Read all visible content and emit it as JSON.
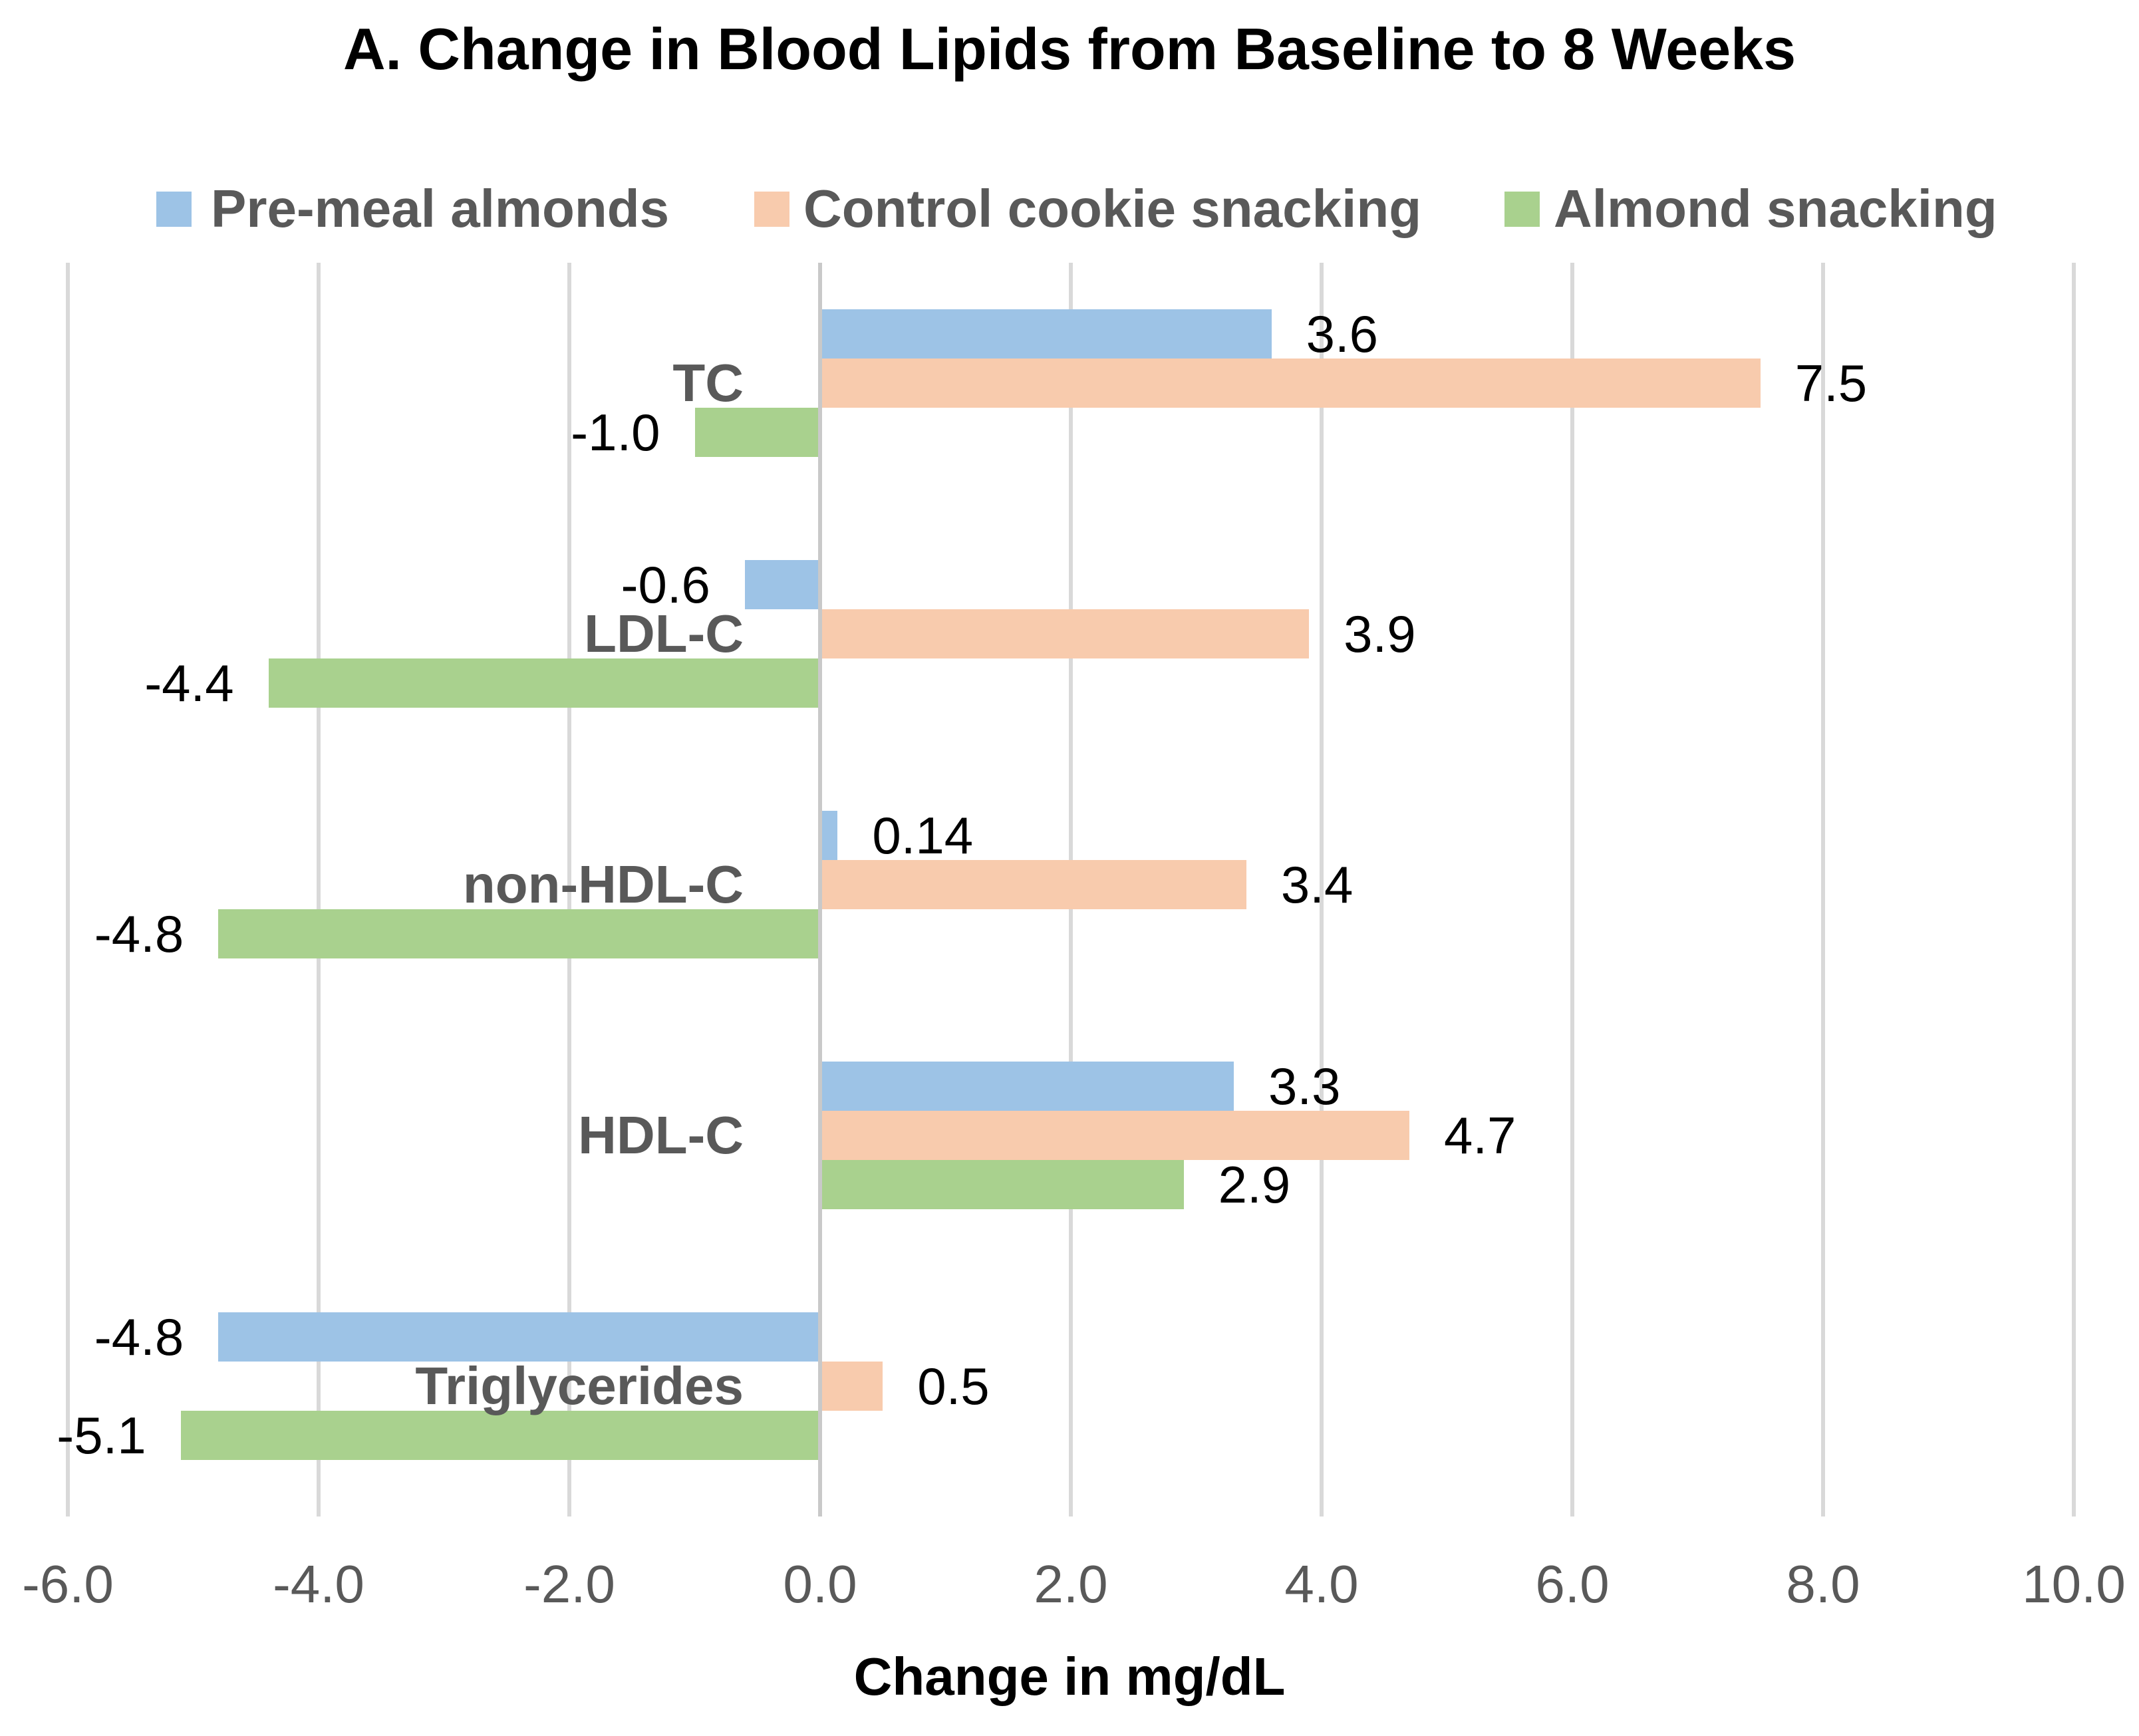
{
  "title": "A. Change in Blood Lipids from Baseline to 8 Weeks",
  "x_axis": {
    "label": "Change in mg/dL",
    "ticks": [
      "-6.0",
      "-4.0",
      "-2.0",
      "0.0",
      "2.0",
      "4.0",
      "6.0",
      "8.0",
      "10.0"
    ],
    "tick_values": [
      -6,
      -4,
      -2,
      0,
      2,
      4,
      6,
      8,
      10
    ],
    "min": -6,
    "max": 10,
    "step": 2
  },
  "style": {
    "gridline_color": "#D9D9D9",
    "zero_axis_color": "#C9C9C9",
    "tick_text_color": "#595959",
    "category_text_color": "#595959",
    "legend_text_color": "#595959",
    "value_text_color": "#000000",
    "title_color": "#000000"
  },
  "chart_data": {
    "type": "bar",
    "orientation": "horizontal",
    "title": "A. Change in Blood Lipids from Baseline to 8 Weeks",
    "xlabel": "Change in mg/dL",
    "xlim": [
      -6,
      10
    ],
    "grid": true,
    "legend_position": "top",
    "categories": [
      "TC",
      "LDL-C",
      "non-HDL-C",
      "HDL-C",
      "Triglycerides"
    ],
    "series": [
      {
        "name": "Pre-meal almonds",
        "color": "#9DC3E6",
        "values": [
          3.6,
          -0.6,
          0.14,
          3.3,
          -4.8
        ],
        "value_labels": [
          "3.6",
          "-0.6",
          "0.14",
          "3.3",
          "-4.8"
        ]
      },
      {
        "name": "Control cookie snacking",
        "color": "#F8CBAD",
        "values": [
          7.5,
          3.9,
          3.4,
          4.7,
          0.5
        ],
        "value_labels": [
          "7.5",
          "3.9",
          "3.4",
          "4.7",
          "0.5"
        ]
      },
      {
        "name": "Almond snacking",
        "color": "#A9D18E",
        "values": [
          -1.0,
          -4.4,
          -4.8,
          2.9,
          -5.1
        ],
        "value_labels": [
          "-1.0",
          "-4.4",
          "-4.8",
          "2.9",
          "-5.1"
        ]
      }
    ]
  }
}
